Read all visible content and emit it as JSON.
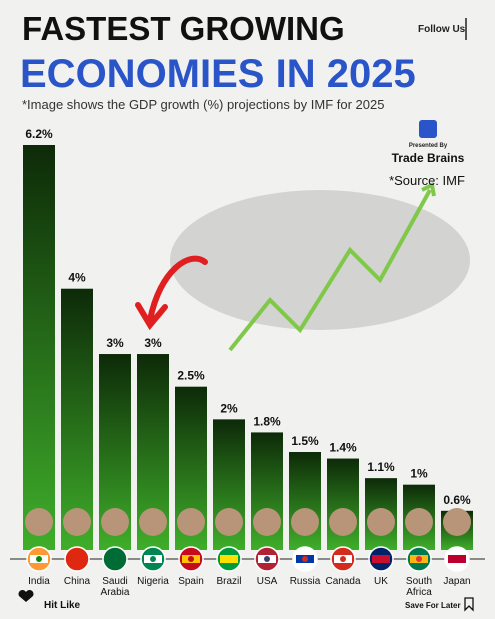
{
  "chart_data": {
    "type": "bar",
    "title": "FASTEST GROWING",
    "subtitle": "ECONOMIES IN 2025",
    "note": "*Image shows the GDP growth (%) projections by IMF for 2025",
    "follow": "Follow Us",
    "presented_by": "Presented By",
    "brand": "Trade Brains",
    "source": "*Source: IMF",
    "footer_left": "Hit Like",
    "footer_right": "Save For Later",
    "categories": [
      "India",
      "China",
      "Saudi Arabia",
      "Nigeria",
      "Spain",
      "Brazil",
      "USA",
      "Russia",
      "Canada",
      "UK",
      "South Africa",
      "Japan"
    ],
    "values": [
      6.2,
      4,
      3,
      3,
      2.5,
      2,
      1.8,
      1.5,
      1.4,
      1.1,
      1,
      0.6
    ],
    "value_labels": [
      "6.2%",
      "4%",
      "3%",
      "3%",
      "2.5%",
      "2%",
      "1.8%",
      "1.5%",
      "1.4%",
      "1.1%",
      "1%",
      "0.6%"
    ],
    "color": "#2f8a1e"
  }
}
